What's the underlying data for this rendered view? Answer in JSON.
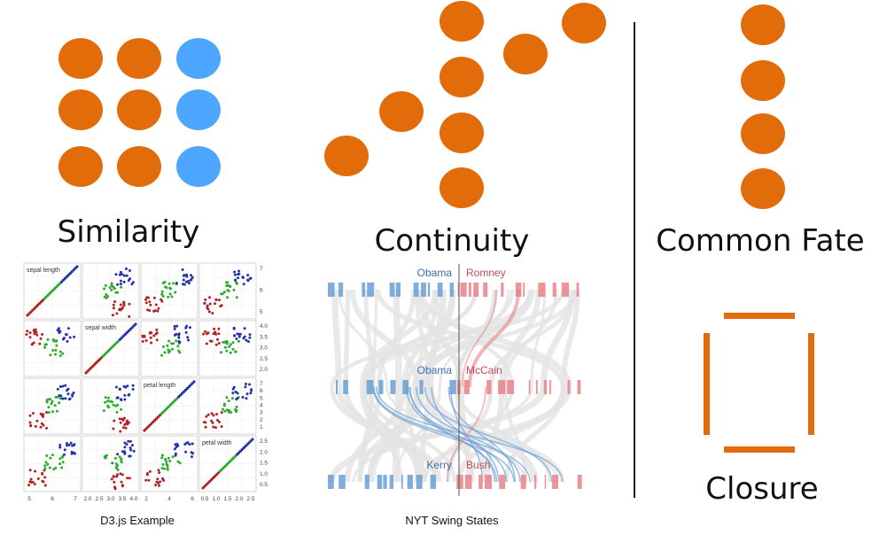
{
  "colors": {
    "orange": "#E26B0A",
    "blue": "#4DA6FF",
    "divider": "#111111",
    "dem": "#6A9FD4",
    "rep": "#E8828A",
    "gray_flow": "#E3E3E3",
    "iris_setosa": "#B22222",
    "iris_versicolor": "#2EAA2E",
    "iris_virginica": "#2233AA"
  },
  "sections": {
    "similarity": {
      "title": "Similarity",
      "grid_rows": 3,
      "grid_cols": 3,
      "colors_by_column": [
        "orange",
        "orange",
        "blue"
      ]
    },
    "continuity": {
      "title": "Continuity",
      "dot_count": 8
    },
    "common_fate": {
      "title": "Common Fate",
      "dot_count": 4
    },
    "closure": {
      "title": "Closure"
    }
  },
  "d3_example": {
    "caption": "D3.js Example",
    "diagonal_labels": [
      "sepal length",
      "sepal width",
      "petal length",
      "petal width"
    ],
    "bottom_ticks": [
      [
        "5",
        "6",
        "7"
      ],
      [
        "2.0",
        "2.5",
        "3.0",
        "3.5",
        "4.0"
      ],
      [
        "2",
        "4",
        "6"
      ],
      [
        "0.5",
        "1.0",
        "1.5",
        "2.0",
        "2.5"
      ]
    ],
    "right_ticks": [
      [
        "5",
        "6",
        "7"
      ],
      [
        "2.0",
        "2.5",
        "3.0",
        "3.5",
        "4.0"
      ],
      [
        "1",
        "2",
        "3",
        "4",
        "5",
        "6",
        "7"
      ],
      [
        "0.5",
        "1.0",
        "1.5",
        "2.0",
        "2.5"
      ]
    ]
  },
  "nyt_swing": {
    "caption": "NYT Swing States",
    "rows": [
      {
        "dem": "Obama",
        "rep": "Romney"
      },
      {
        "dem": "Obama",
        "rep": "McCain"
      },
      {
        "dem": "Kerry",
        "rep": "Bush"
      }
    ]
  }
}
